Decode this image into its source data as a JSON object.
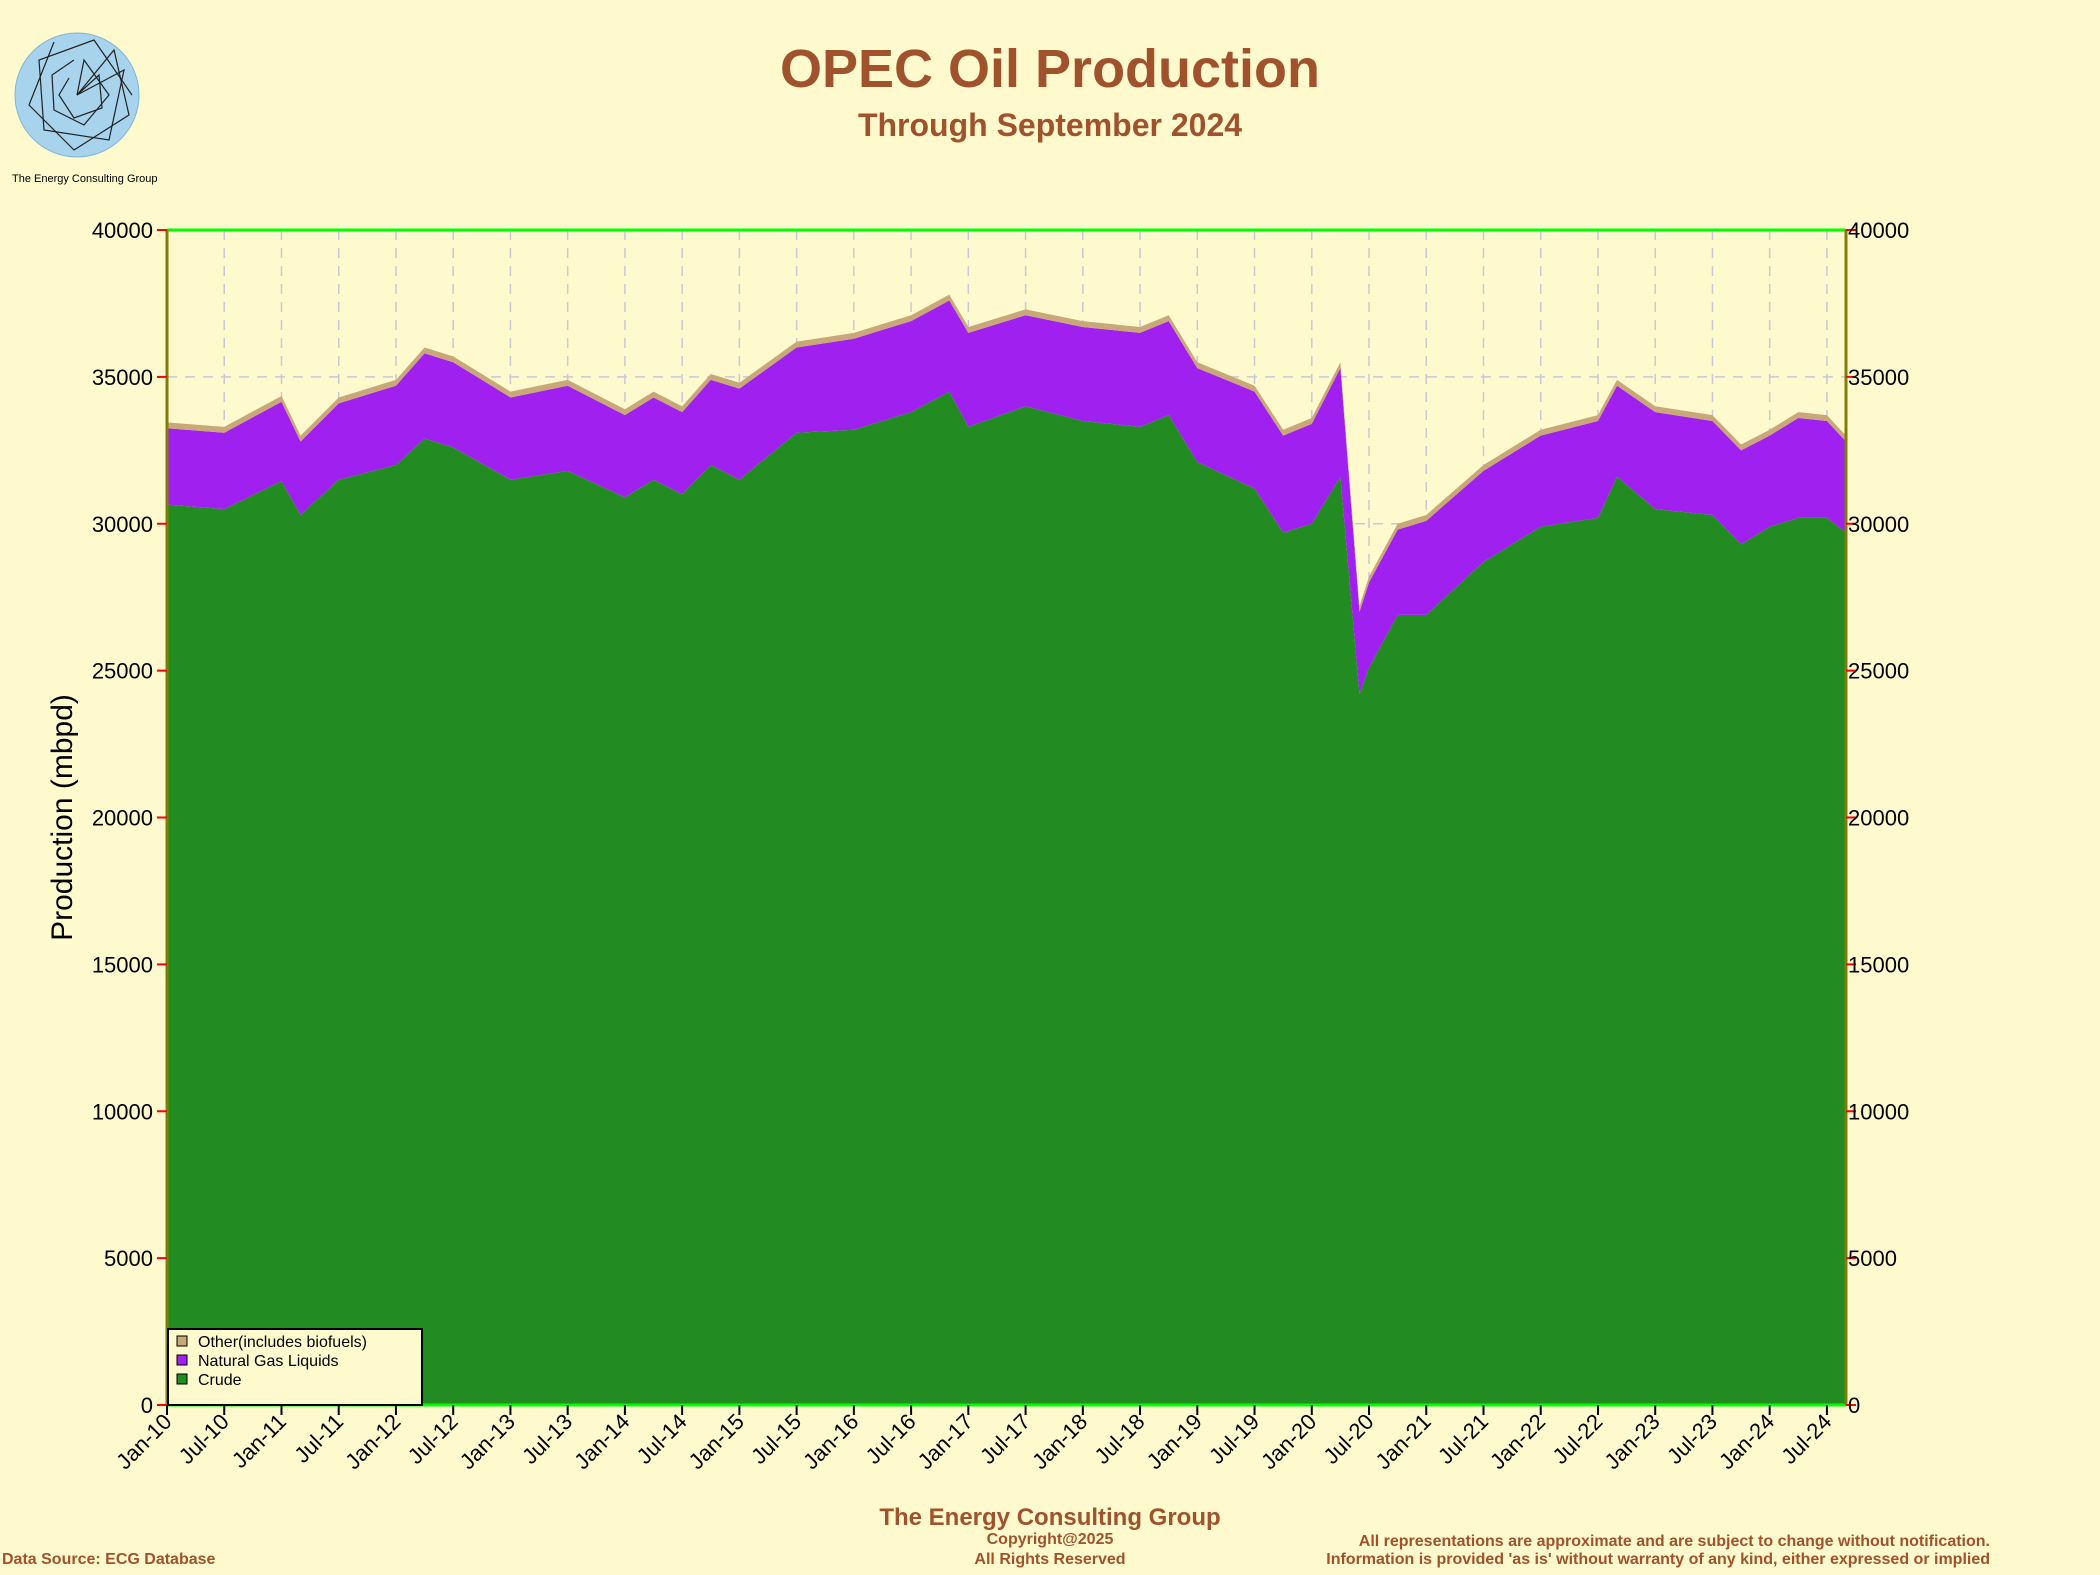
{
  "header": {
    "title": "OPEC Oil Production",
    "subtitle": "Through September 2024"
  },
  "logo": {
    "caption": "The Energy Consulting Group",
    "icon": "spiral-logo-icon"
  },
  "footer": {
    "company": "The Energy Consulting Group",
    "copyright": "Copyright@2025",
    "rights": "All Rights Reserved",
    "source": "Data Source: ECG Database",
    "disclaimer_line1": "All representations are approximate and are subject to change without notification.",
    "disclaimer_line2": "Information is provided 'as is' without warranty of any kind, either expressed or implied"
  },
  "colors": {
    "crude": "#228b22",
    "ngl": "#a020f0",
    "other": "#c8a878",
    "frame_top": "#00ff00",
    "axis_side": "#808000",
    "tick": "#ff0000",
    "grid": "#c8c8d8",
    "title": "#a0522d"
  },
  "chart_data": {
    "type": "area",
    "stacked": true,
    "ylabel": "Production (mbpd)",
    "ylim": [
      0,
      40000
    ],
    "yticks": [
      0,
      5000,
      10000,
      15000,
      20000,
      25000,
      30000,
      35000,
      40000
    ],
    "xlim": [
      "Jan-10",
      "Sep-24"
    ],
    "xticks": [
      "Jan-10",
      "Jul-10",
      "Jan-11",
      "Jul-11",
      "Jan-12",
      "Jul-12",
      "Jan-13",
      "Jul-13",
      "Jan-14",
      "Jul-14",
      "Jan-15",
      "Jul-15",
      "Jan-16",
      "Jul-16",
      "Jan-17",
      "Jul-17",
      "Jan-18",
      "Jul-18",
      "Jan-19",
      "Jul-19",
      "Jan-20",
      "Jul-20",
      "Jan-21",
      "Jul-21",
      "Jan-22",
      "Jul-22",
      "Jan-23",
      "Jul-23",
      "Jan-24",
      "Jul-24"
    ],
    "grid": true,
    "legend_position": "bottom-left",
    "legend": [
      "Other(includes biofuels)",
      "Natural Gas Liquids",
      "Crude"
    ],
    "x": [
      "Jan-10",
      "Jul-10",
      "Jan-11",
      "Mar-11",
      "Jul-11",
      "Jan-12",
      "Apr-12",
      "Jul-12",
      "Jan-13",
      "Jul-13",
      "Jan-14",
      "Apr-14",
      "Jul-14",
      "Oct-14",
      "Jan-15",
      "Jul-15",
      "Jan-16",
      "Jul-16",
      "Nov-16",
      "Jan-17",
      "Jul-17",
      "Jan-18",
      "Jul-18",
      "Oct-18",
      "Jan-19",
      "Jul-19",
      "Oct-19",
      "Jan-20",
      "Apr-20",
      "Jun-20",
      "Jul-20",
      "Oct-20",
      "Jan-21",
      "Jul-21",
      "Jan-22",
      "Jul-22",
      "Sep-22",
      "Jan-23",
      "Jul-23",
      "Oct-23",
      "Jan-24",
      "Apr-24",
      "Jul-24",
      "Sep-24"
    ],
    "series": [
      {
        "name": "Crude",
        "values": [
          30650,
          30500,
          31450,
          30300,
          31500,
          32000,
          32900,
          32600,
          31500,
          31800,
          30900,
          31500,
          31000,
          32000,
          31500,
          33100,
          33200,
          33800,
          34500,
          33300,
          34000,
          33500,
          33300,
          33700,
          32100,
          31200,
          29700,
          30000,
          31600,
          24200,
          25100,
          26900,
          26900,
          28700,
          29900,
          30200,
          31600,
          30500,
          30300,
          29300,
          29900,
          30200,
          30200,
          29700
        ]
      },
      {
        "name": "Natural Gas Liquids",
        "values": [
          2600,
          2600,
          2700,
          2500,
          2600,
          2700,
          2900,
          2900,
          2800,
          2900,
          2800,
          2800,
          2800,
          2900,
          3100,
          2900,
          3100,
          3100,
          3100,
          3200,
          3100,
          3200,
          3200,
          3200,
          3200,
          3300,
          3300,
          3400,
          3700,
          2800,
          2900,
          2900,
          3200,
          3100,
          3100,
          3300,
          3100,
          3300,
          3200,
          3200,
          3100,
          3400,
          3300,
          3100
        ]
      },
      {
        "name": "Other(includes biofuels)",
        "values": [
          200,
          200,
          200,
          200,
          200,
          200,
          200,
          200,
          200,
          200,
          200,
          200,
          200,
          200,
          200,
          200,
          200,
          200,
          200,
          200,
          200,
          200,
          200,
          200,
          200,
          200,
          200,
          200,
          200,
          200,
          200,
          200,
          200,
          200,
          200,
          200,
          200,
          200,
          200,
          200,
          200,
          200,
          200,
          200
        ]
      }
    ]
  }
}
